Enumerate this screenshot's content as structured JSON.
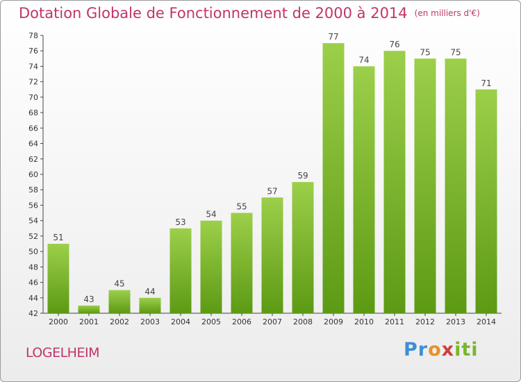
{
  "chart_data": {
    "type": "bar",
    "title": "Dotation Globale de Fonctionnement de 2000 à 2014",
    "unit": "(en milliers d'€)",
    "categories": [
      "2000",
      "2001",
      "2002",
      "2003",
      "2004",
      "2005",
      "2006",
      "2007",
      "2008",
      "2009",
      "2010",
      "2011",
      "2012",
      "2013",
      "2014"
    ],
    "values": [
      51,
      43,
      45,
      44,
      53,
      54,
      55,
      57,
      59,
      77,
      74,
      76,
      75,
      75,
      71
    ],
    "ylim": [
      42,
      78
    ],
    "ytick_step": 2,
    "grid": false,
    "bar_color_top": "#9ccf4a",
    "bar_color_bottom": "#5d9a14"
  },
  "commune": "LOGELHEIM",
  "logo": {
    "text": "Proxiti"
  }
}
